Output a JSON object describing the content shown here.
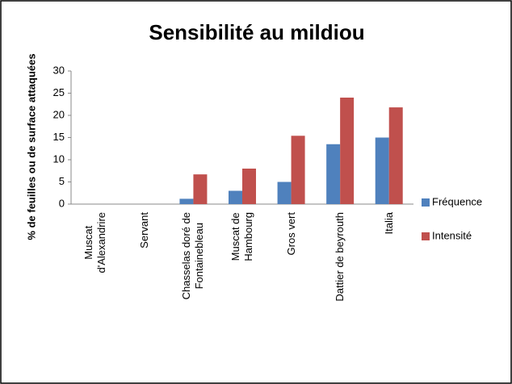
{
  "chart_data": {
    "type": "bar",
    "title": "Sensibilité au mildiou",
    "ylabel": "% de feuilles ou de surface attaquées",
    "categories": [
      "Muscat\nd'Alexandrire",
      "Servant",
      "Chasselas doré de\nFontainebleau",
      "Muscat de\nHambourg",
      "Gros vert",
      "Dattier de beyrouth",
      "Italia"
    ],
    "series": [
      {
        "name": "Fréquence",
        "color": "#4f81bd",
        "values": [
          0,
          0,
          1.2,
          3,
          5,
          13.5,
          15
        ]
      },
      {
        "name": "Intensité",
        "color": "#c0504d",
        "values": [
          0,
          0,
          6.7,
          8,
          15.4,
          24,
          21.8
        ]
      }
    ],
    "ylim": [
      0,
      30
    ],
    "yticks": [
      0,
      5,
      10,
      15,
      20,
      25,
      30
    ],
    "grid": false,
    "legend": "right"
  }
}
